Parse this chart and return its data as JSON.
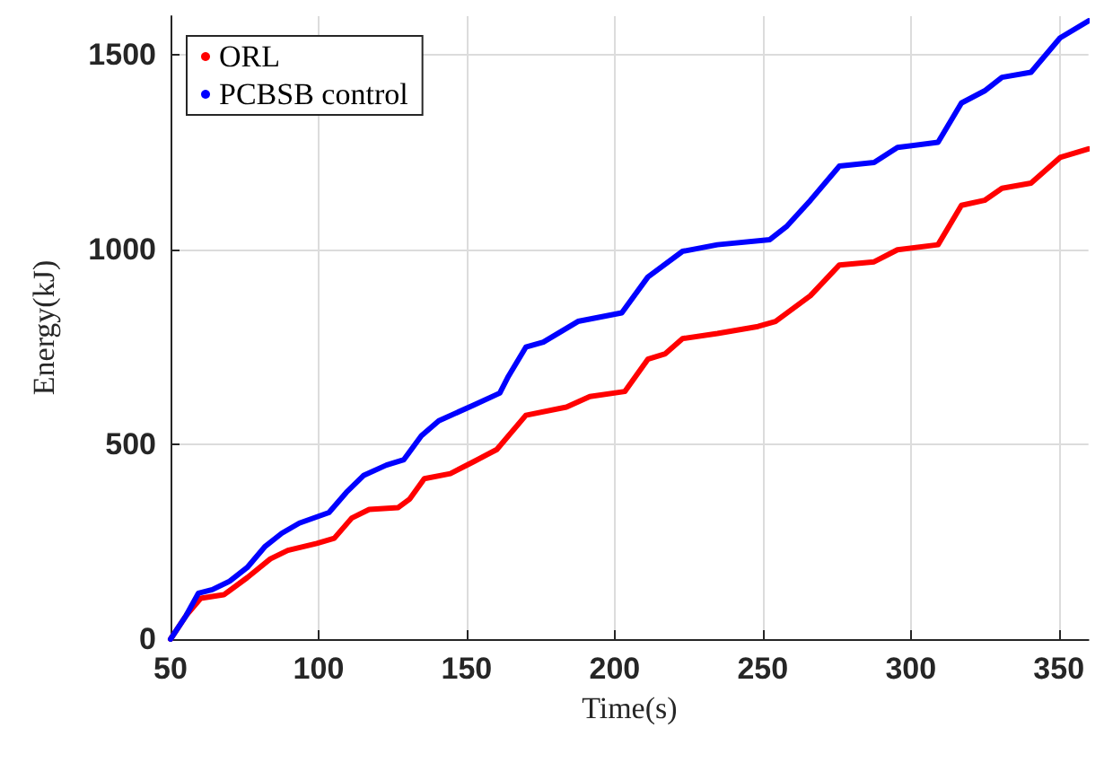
{
  "chart_data": {
    "type": "line",
    "xlabel": "Time(s)",
    "ylabel": "Energy(kJ)",
    "xlim": [
      50,
      360
    ],
    "xticks": [
      50,
      100,
      150,
      200,
      250,
      300,
      350
    ],
    "ylim": [
      0,
      1600
    ],
    "yticks": [
      0,
      500,
      1000,
      1500
    ],
    "grid": true,
    "legend": "top left",
    "line_style": "solid",
    "marker": "none",
    "series": [
      {
        "name": "ORL",
        "color": "#ff0000",
        "x": [
          50,
          55.3,
          60.2,
          68,
          75.9,
          83.7,
          89.6,
          99.4,
          105.3,
          111.2,
          117.1,
          126.9,
          130.8,
          135.7,
          144.5,
          152.4,
          160.2,
          170,
          183.7,
          191.6,
          203.4,
          211.2,
          217.1,
          222.9,
          234.7,
          248.4,
          254.3,
          266.1,
          275.9,
          287.6,
          295.5,
          309.2,
          317.1,
          324.9,
          330.8,
          340.6,
          350.4,
          360
        ],
        "values": [
          0,
          61,
          105,
          114,
          158,
          206,
          228,
          246,
          259,
          311,
          333,
          338,
          360,
          412,
          425,
          456,
          487,
          575,
          596,
          623,
          636,
          719,
          733,
          772,
          785,
          803,
          816,
          882,
          961,
          969,
          1000,
          1013,
          1114,
          1127,
          1158,
          1171,
          1237,
          1259
        ]
      },
      {
        "name": "PCBSB control",
        "color": "#0000ff",
        "x": [
          50,
          55.3,
          59.4,
          64.1,
          70,
          75.9,
          81.8,
          87.6,
          93.5,
          103.5,
          109.4,
          115.3,
          122.9,
          128.8,
          134.7,
          140.6,
          152.4,
          161.2,
          164.1,
          170,
          175.9,
          187.6,
          202.4,
          211.2,
          222.9,
          234.7,
          252.4,
          258.2,
          266.1,
          275.9,
          287.6,
          295.5,
          309.2,
          317.1,
          324.9,
          330.8,
          340.6,
          350.4,
          360
        ],
        "values": [
          0,
          61,
          118,
          127,
          149,
          184,
          237,
          272,
          298,
          325,
          377,
          421,
          447,
          461,
          522,
          561,
          601,
          632,
          675,
          750,
          763,
          816,
          838,
          930,
          996,
          1013,
          1026,
          1061,
          1127,
          1215,
          1224,
          1263,
          1276,
          1377,
          1408,
          1443,
          1456,
          1544,
          1588
        ]
      }
    ]
  }
}
